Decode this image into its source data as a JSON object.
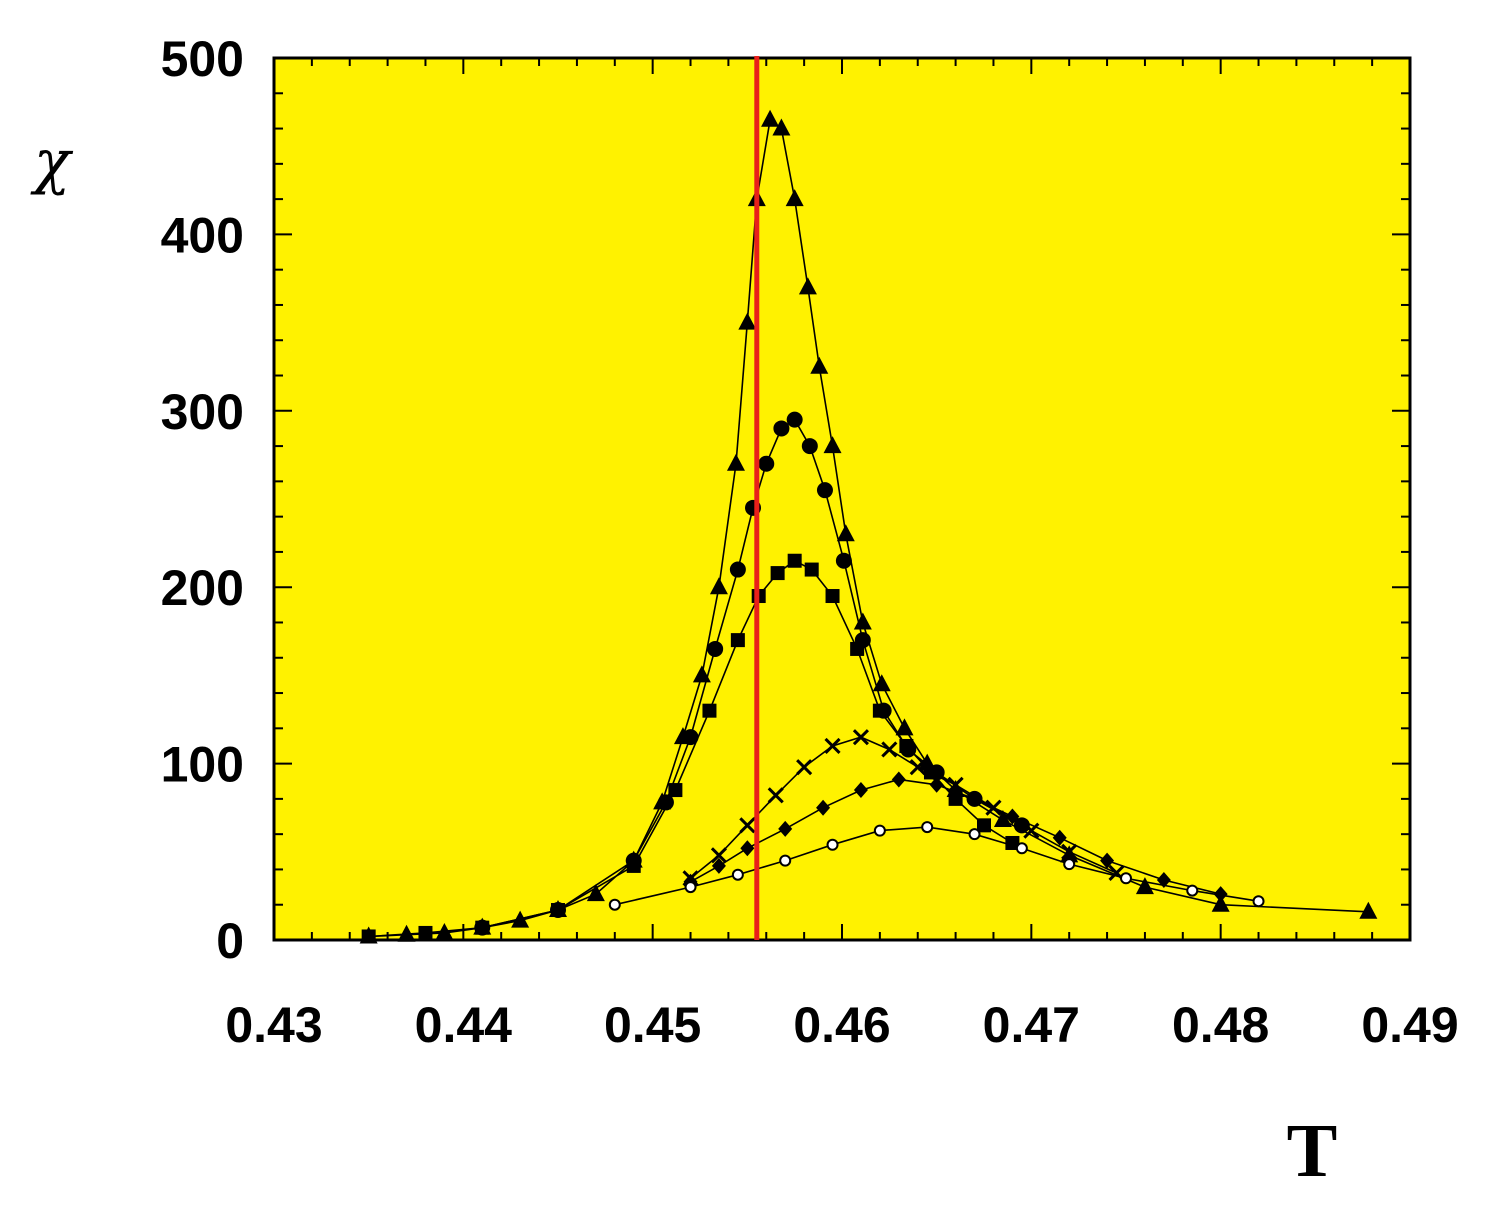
{
  "chart_data": {
    "type": "line",
    "xlabel": "T",
    "ylabel": "χ",
    "xlim": [
      0.43,
      0.49
    ],
    "ylim": [
      0,
      500
    ],
    "x_ticks": [
      "0.43",
      "0.44",
      "0.45",
      "0.46",
      "0.47",
      "0.48",
      "0.49"
    ],
    "y_ticks": [
      "0",
      "100",
      "200",
      "300",
      "400",
      "500"
    ],
    "grid": false,
    "legend": "none",
    "background": "#FFF200",
    "marker_color": "#000000",
    "vline": {
      "x": 0.4555,
      "color": "#E8201A"
    },
    "series": [
      {
        "marker": "triangle",
        "points": [
          [
            0.435,
            2
          ],
          [
            0.437,
            3
          ],
          [
            0.439,
            4
          ],
          [
            0.441,
            7
          ],
          [
            0.443,
            11
          ],
          [
            0.445,
            17
          ],
          [
            0.447,
            26
          ],
          [
            0.449,
            45
          ],
          [
            0.4505,
            78
          ],
          [
            0.4516,
            115
          ],
          [
            0.4526,
            150
          ],
          [
            0.4535,
            200
          ],
          [
            0.4544,
            270
          ],
          [
            0.455,
            350
          ],
          [
            0.4555,
            420
          ],
          [
            0.4562,
            465
          ],
          [
            0.4568,
            460
          ],
          [
            0.4575,
            420
          ],
          [
            0.4582,
            370
          ],
          [
            0.4588,
            325
          ],
          [
            0.4595,
            280
          ],
          [
            0.4602,
            230
          ],
          [
            0.4611,
            180
          ],
          [
            0.4621,
            145
          ],
          [
            0.4633,
            120
          ],
          [
            0.4645,
            100
          ],
          [
            0.466,
            85
          ],
          [
            0.4685,
            68
          ],
          [
            0.472,
            48
          ],
          [
            0.476,
            30
          ],
          [
            0.48,
            20
          ],
          [
            0.4878,
            16
          ]
        ]
      },
      {
        "marker": "circle",
        "points": [
          [
            0.441,
            7
          ],
          [
            0.445,
            17
          ],
          [
            0.449,
            45
          ],
          [
            0.4507,
            78
          ],
          [
            0.452,
            115
          ],
          [
            0.4533,
            165
          ],
          [
            0.4545,
            210
          ],
          [
            0.4553,
            245
          ],
          [
            0.456,
            270
          ],
          [
            0.4568,
            290
          ],
          [
            0.4575,
            295
          ],
          [
            0.4583,
            280
          ],
          [
            0.4591,
            255
          ],
          [
            0.4601,
            215
          ],
          [
            0.4611,
            170
          ],
          [
            0.4622,
            130
          ],
          [
            0.4635,
            108
          ],
          [
            0.465,
            95
          ],
          [
            0.467,
            80
          ],
          [
            0.4695,
            65
          ]
        ]
      },
      {
        "marker": "square",
        "points": [
          [
            0.435,
            2
          ],
          [
            0.438,
            4
          ],
          [
            0.441,
            7
          ],
          [
            0.445,
            17
          ],
          [
            0.449,
            42
          ],
          [
            0.4512,
            85
          ],
          [
            0.453,
            130
          ],
          [
            0.4545,
            170
          ],
          [
            0.4556,
            195
          ],
          [
            0.4566,
            208
          ],
          [
            0.4575,
            215
          ],
          [
            0.4584,
            210
          ],
          [
            0.4595,
            195
          ],
          [
            0.4608,
            165
          ],
          [
            0.462,
            130
          ],
          [
            0.4634,
            110
          ],
          [
            0.4647,
            95
          ],
          [
            0.466,
            80
          ],
          [
            0.4675,
            65
          ],
          [
            0.469,
            55
          ]
        ]
      },
      {
        "marker": "cross",
        "points": [
          [
            0.452,
            35
          ],
          [
            0.4535,
            48
          ],
          [
            0.455,
            65
          ],
          [
            0.4565,
            82
          ],
          [
            0.458,
            98
          ],
          [
            0.4595,
            110
          ],
          [
            0.461,
            115
          ],
          [
            0.4625,
            108
          ],
          [
            0.464,
            98
          ],
          [
            0.466,
            88
          ],
          [
            0.468,
            75
          ],
          [
            0.47,
            62
          ],
          [
            0.472,
            50
          ],
          [
            0.4745,
            38
          ]
        ]
      },
      {
        "marker": "diamond",
        "points": [
          [
            0.452,
            33
          ],
          [
            0.4535,
            42
          ],
          [
            0.455,
            52
          ],
          [
            0.457,
            63
          ],
          [
            0.459,
            75
          ],
          [
            0.461,
            85
          ],
          [
            0.463,
            91
          ],
          [
            0.465,
            88
          ],
          [
            0.467,
            80
          ],
          [
            0.469,
            70
          ],
          [
            0.4715,
            58
          ],
          [
            0.474,
            45
          ],
          [
            0.477,
            34
          ],
          [
            0.48,
            26
          ]
        ]
      },
      {
        "marker": "open-circle",
        "points": [
          [
            0.448,
            20
          ],
          [
            0.452,
            30
          ],
          [
            0.4545,
            37
          ],
          [
            0.457,
            45
          ],
          [
            0.4595,
            54
          ],
          [
            0.462,
            62
          ],
          [
            0.4645,
            64
          ],
          [
            0.467,
            60
          ],
          [
            0.4695,
            52
          ],
          [
            0.472,
            43
          ],
          [
            0.475,
            35
          ],
          [
            0.4785,
            28
          ],
          [
            0.482,
            22
          ]
        ]
      }
    ]
  }
}
